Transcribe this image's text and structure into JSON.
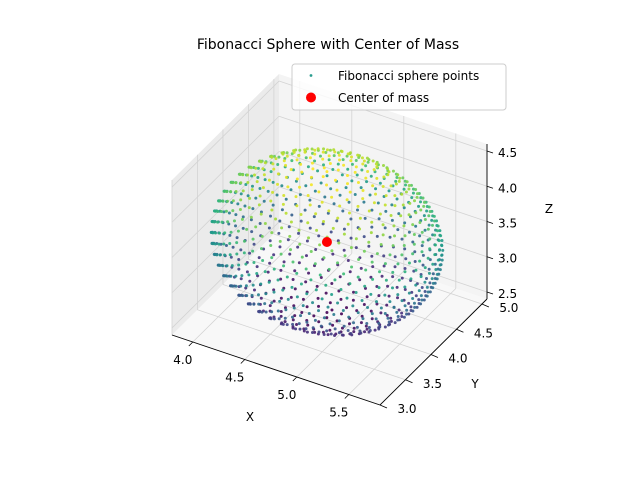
{
  "chart_data": {
    "type": "scatter",
    "title": "Fibonacci Sphere with Center of Mass",
    "xlabel": "X",
    "ylabel": "Y",
    "zlabel": "Z",
    "xlim": [
      3.8,
      5.8
    ],
    "ylim": [
      3.0,
      5.1
    ],
    "zlim": [
      2.4,
      4.6
    ],
    "xticks": [
      "4.0",
      "4.5",
      "5.0",
      "5.5"
    ],
    "xtick_values": [
      4.0,
      4.5,
      5.0,
      5.5
    ],
    "yticks": [
      "3.0",
      "3.5",
      "4.0",
      "4.5",
      "5.0"
    ],
    "ytick_values": [
      3.0,
      3.5,
      4.0,
      4.5,
      5.0
    ],
    "zticks": [
      "2.5",
      "3.0",
      "3.5",
      "4.0",
      "4.5"
    ],
    "ztick_values": [
      2.5,
      3.0,
      3.5,
      4.0,
      4.5
    ],
    "grid": true,
    "legend_position": "top-right",
    "series": [
      {
        "name": "Fibonacci sphere points",
        "kind": "fibonacci-sphere",
        "count": 1000,
        "center": [
          4.8,
          4.0,
          3.5
        ],
        "radius": 1.0,
        "colormap": "viridis",
        "color_by": "z",
        "marker_size": 1.5
      },
      {
        "name": "Center of mass",
        "points": [
          [
            4.8,
            4.0,
            3.5
          ]
        ],
        "color": "#ff0000",
        "marker_size": 5
      }
    ]
  }
}
